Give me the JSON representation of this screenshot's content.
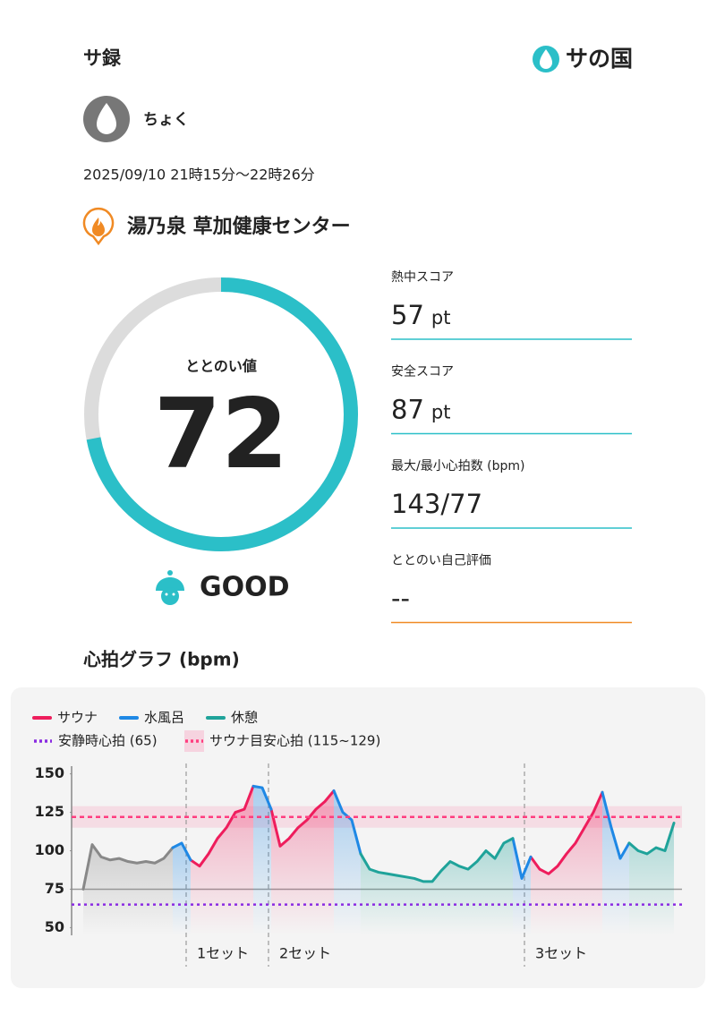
{
  "header": {
    "title": "サ録",
    "logo": "サの国"
  },
  "user": {
    "name": "ちょく"
  },
  "datetime": "2025/09/10 21時15分〜22時26分",
  "facility": "湯乃泉 草加健康センター",
  "score": {
    "label": "ととのい値",
    "value": 72,
    "lim": [
      0,
      100
    ],
    "color": "#2bbfc8",
    "track_color": "#dcdcdc"
  },
  "rating": "GOOD",
  "metrics": [
    {
      "label": "熱中スコア",
      "value": 57,
      "unit": "pt",
      "line_color": "#2bbfc8"
    },
    {
      "label": "安全スコア",
      "value": 87,
      "unit": "pt",
      "line_color": "#2bbfc8"
    },
    {
      "label": "最大/最小心拍数 (bpm)",
      "value": "143/77",
      "line_color": "#2bbfc8"
    },
    {
      "label": "ととのい自己評価",
      "value": "--",
      "line_color": "#f08a24"
    }
  ],
  "chart_heading": "心拍グラフ (bpm)",
  "chart_data": {
    "type": "line",
    "ylim": [
      45,
      155
    ],
    "xlim": [
      -1.3,
      66.9
    ],
    "yticks": [
      50,
      75,
      100,
      125,
      150
    ],
    "hlines": [
      75
    ],
    "series": [
      {
        "color": "#888888",
        "values": [
          75,
          104,
          96,
          94,
          95,
          93,
          92,
          93,
          92,
          95,
          102,
          null,
          null,
          null,
          null,
          null,
          null,
          null,
          null,
          null,
          null,
          null,
          null,
          null,
          null,
          null,
          null,
          null,
          null,
          null,
          null,
          null,
          null,
          null,
          null,
          null,
          null,
          null,
          null,
          null,
          null,
          null,
          null,
          null,
          null,
          null,
          null,
          null,
          null,
          null,
          null,
          null,
          null,
          null,
          null,
          null,
          null,
          null,
          null,
          null,
          null,
          null,
          null,
          null,
          null,
          null,
          null
        ]
      },
      {
        "name": "サウナ",
        "color": "#ee1d5c",
        "values": [
          null,
          null,
          null,
          null,
          null,
          null,
          null,
          null,
          null,
          null,
          null,
          null,
          94,
          90,
          98,
          108,
          115,
          125,
          127,
          142,
          null,
          127,
          103,
          108,
          115,
          120,
          127,
          132,
          139,
          null,
          null,
          null,
          null,
          null,
          null,
          null,
          null,
          null,
          null,
          null,
          null,
          null,
          null,
          null,
          null,
          null,
          null,
          null,
          null,
          null,
          96,
          88,
          85,
          90,
          98,
          105,
          115,
          125,
          138,
          null,
          null,
          null,
          null,
          null,
          null,
          null,
          null
        ]
      },
      {
        "name": "水風呂",
        "color": "#1e88e5",
        "values": [
          null,
          null,
          null,
          null,
          null,
          null,
          null,
          null,
          null,
          null,
          102,
          105,
          94,
          null,
          null,
          null,
          null,
          null,
          null,
          142,
          141,
          127,
          null,
          null,
          null,
          null,
          null,
          null,
          139,
          125,
          120,
          98,
          null,
          null,
          null,
          null,
          null,
          null,
          null,
          null,
          null,
          null,
          null,
          null,
          null,
          null,
          null,
          null,
          108,
          82,
          96,
          null,
          null,
          null,
          null,
          null,
          null,
          null,
          138,
          115,
          95,
          105,
          null,
          null,
          null,
          null,
          null
        ]
      },
      {
        "name": "休憩",
        "color": "#1fa39a",
        "values": [
          null,
          null,
          null,
          null,
          null,
          null,
          null,
          null,
          null,
          null,
          null,
          null,
          null,
          null,
          null,
          null,
          null,
          null,
          null,
          null,
          null,
          null,
          null,
          null,
          null,
          null,
          null,
          null,
          null,
          null,
          null,
          98,
          88,
          86,
          85,
          84,
          83,
          82,
          80,
          80,
          87,
          93,
          90,
          88,
          93,
          100,
          95,
          105,
          108,
          null,
          null,
          null,
          null,
          null,
          null,
          null,
          null,
          null,
          null,
          null,
          null,
          105,
          100,
          98,
          102,
          100,
          118
        ]
      }
    ],
    "rest_line": {
      "name": "安静時心拍 (65)",
      "value": 65,
      "color": "#8a2be2"
    },
    "sauna_band": {
      "name": "サウナ目安心拍 (115~129)",
      "range": [
        115,
        129
      ],
      "mid": 122,
      "color": "#ff3d7f"
    },
    "sets": [
      {
        "label": "1セット",
        "at": 11.5
      },
      {
        "label": "2セット",
        "at": 20.7
      },
      {
        "label": "3セット",
        "at": 49.3
      }
    ]
  }
}
